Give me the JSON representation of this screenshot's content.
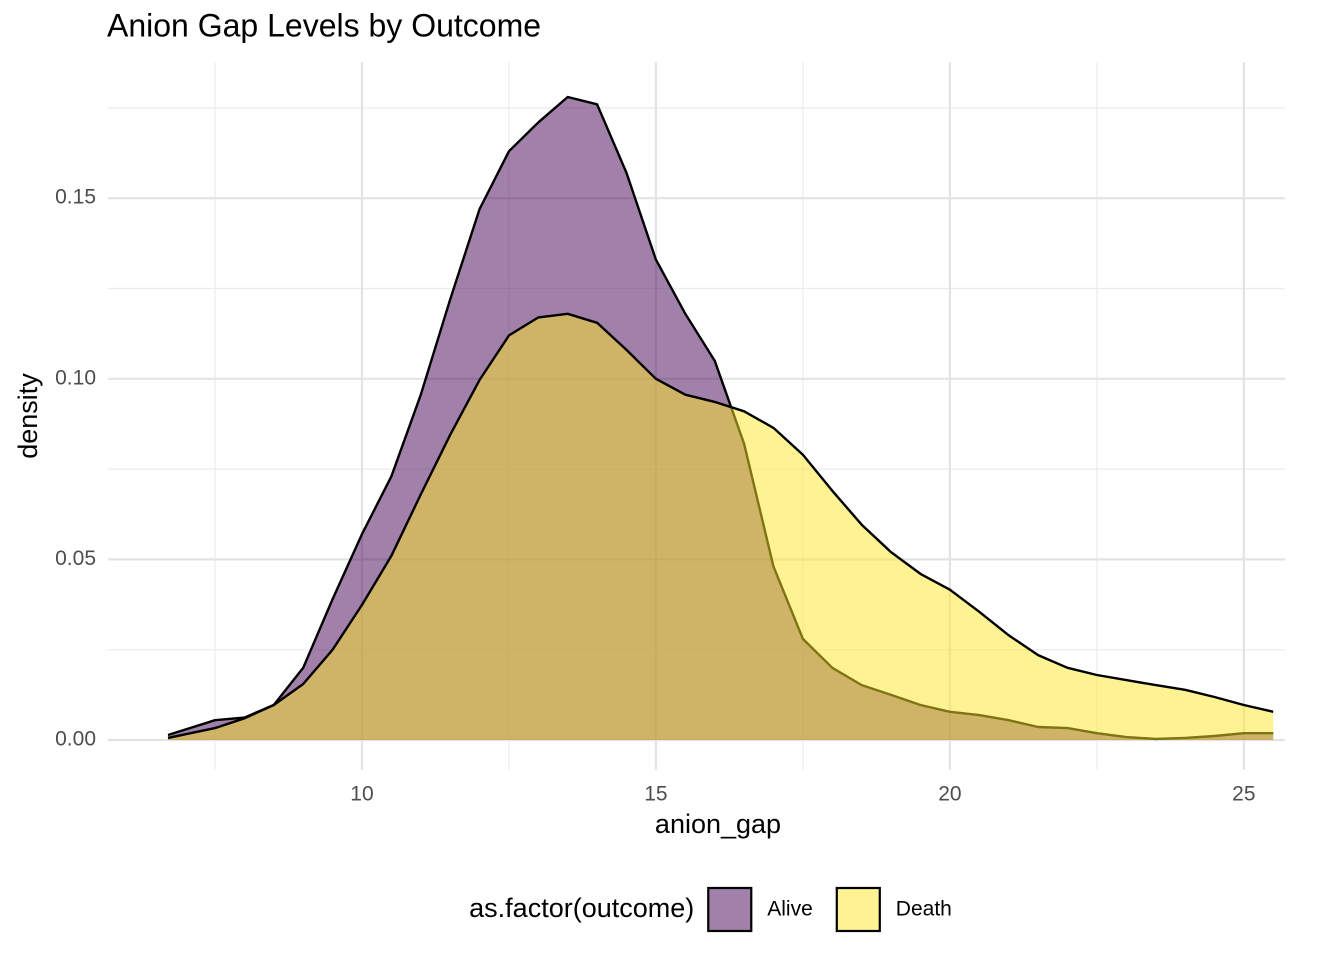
{
  "chart_data": {
    "type": "density",
    "title": "Anion Gap Levels by Outcome",
    "x_label": "anion_gap",
    "y_label": "density",
    "legend_title": "as.factor(outcome)",
    "legend_position": "bottom",
    "x": [
      6.7,
      7.5,
      8,
      8.5,
      9,
      9.5,
      10,
      10.5,
      11,
      11.5,
      12,
      12.5,
      13,
      13.5,
      14,
      14.5,
      15,
      15.5,
      16,
      16.5,
      17,
      17.5,
      18,
      18.5,
      19,
      19.5,
      20,
      20.5,
      21,
      21.5,
      22,
      22.5,
      23,
      23.5,
      24,
      24.5,
      25,
      25.5
    ],
    "series": [
      {
        "name": "Alive",
        "color": "#440154",
        "values": [
          0.0014,
          0.0055,
          0.0062,
          0.0097,
          0.02,
          0.039,
          0.057,
          0.073,
          0.0956,
          0.122,
          0.147,
          0.163,
          0.171,
          0.178,
          0.176,
          0.157,
          0.133,
          0.118,
          0.105,
          0.082,
          0.048,
          0.028,
          0.02,
          0.0152,
          0.0125,
          0.0097,
          0.0078,
          0.0069,
          0.0055,
          0.0036,
          0.0033,
          0.0019,
          0.0008,
          0.0003,
          0.0006,
          0.0011,
          0.0019,
          0.0019
        ]
      },
      {
        "name": "Death",
        "color": "#FDE725",
        "values": [
          0.0006,
          0.0033,
          0.006,
          0.0097,
          0.0155,
          0.025,
          0.0374,
          0.051,
          0.068,
          0.0845,
          0.0997,
          0.112,
          0.117,
          0.118,
          0.1155,
          0.108,
          0.1,
          0.0956,
          0.0936,
          0.091,
          0.0864,
          0.079,
          0.069,
          0.0596,
          0.052,
          0.046,
          0.0416,
          0.0355,
          0.029,
          0.0235,
          0.02,
          0.018,
          0.0166,
          0.0152,
          0.0139,
          0.0119,
          0.0097,
          0.0078
        ]
      }
    ],
    "fill_opacity": 0.5,
    "xlim": [
      5.68,
      25.7
    ],
    "ylim": [
      -0.0083,
      0.1877
    ],
    "xticks": [
      10,
      15,
      20,
      25
    ],
    "yticks": [
      {
        "value": 0,
        "label": "0.00"
      },
      {
        "value": 0.05,
        "label": "0.05"
      },
      {
        "value": 0.1,
        "label": "0.10"
      },
      {
        "value": 0.15,
        "label": "0.15"
      }
    ],
    "grid": true
  }
}
